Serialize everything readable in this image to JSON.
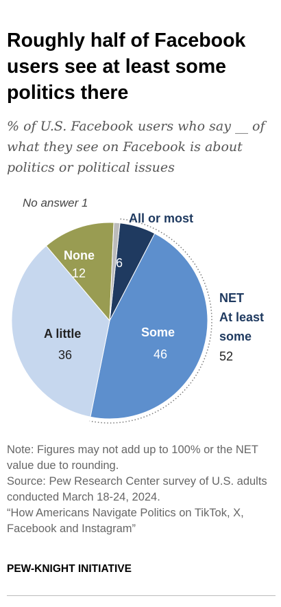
{
  "title": "Roughly half of Facebook users see at least some politics there",
  "subtitle": "% of U.S. Facebook users who say __ of what they see on Facebook is about politics or political issues",
  "chart_data": {
    "type": "pie",
    "slices": [
      {
        "label": "All or most",
        "value": 6,
        "color": "#1f3a60"
      },
      {
        "label": "Some",
        "value": 46,
        "color": "#5d8fcd"
      },
      {
        "label": "A little",
        "value": 36,
        "color": "#c6d7ee"
      },
      {
        "label": "None",
        "value": 12,
        "color": "#999c52"
      },
      {
        "label": "No answer",
        "value": 1,
        "color": "#bbbbbb"
      }
    ],
    "net": {
      "label_line1": "NET",
      "label_line2": "At least",
      "label_line3": "some",
      "value": 52
    }
  },
  "labels": {
    "no_answer": "No answer 1",
    "all_or_most": "All or most",
    "all_or_most_value": "6",
    "some": "Some",
    "some_value": "46",
    "a_little": "A little",
    "a_little_value": "36",
    "none": "None",
    "none_value": "12",
    "net_1": "NET",
    "net_2": "At least",
    "net_3": "some",
    "net_value": "52"
  },
  "notes": {
    "note": "Note: Figures may not add up to 100% or the NET value due to rounding.",
    "source": "Source: Pew Research Center survey of U.S. adults conducted March 18-24, 2024.",
    "report": "“How Americans Navigate Politics on TikTok, X, Facebook and Instagram”"
  },
  "brand": "PEW-KNIGHT INITIATIVE"
}
